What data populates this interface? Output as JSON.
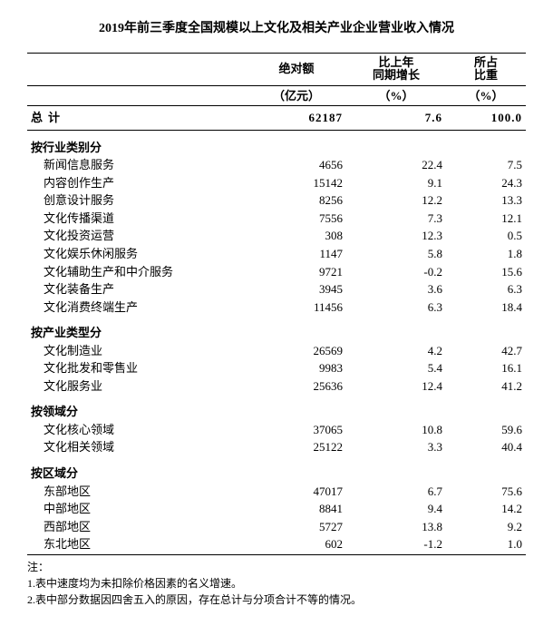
{
  "title": "2019年前三季度全国规模以上文化及相关产业企业营业收入情况",
  "header": {
    "col_label": "",
    "col_v1_line1": "绝对额",
    "col_v2_line1": "比上年",
    "col_v2_line2": "同期增长",
    "col_v3_line1": "所占",
    "col_v3_line2": "比重",
    "sub_v1": "（亿元）",
    "sub_v2": "（%）",
    "sub_v3": "（%）"
  },
  "total": {
    "label": "总计",
    "v1": "62187",
    "v2": "7.6",
    "v3": "100.0"
  },
  "sections": [
    {
      "name": "按行业类别分",
      "rows": [
        {
          "label": "新闻信息服务",
          "v1": "4656",
          "v2": "22.4",
          "v3": "7.5"
        },
        {
          "label": "内容创作生产",
          "v1": "15142",
          "v2": "9.1",
          "v3": "24.3"
        },
        {
          "label": "创意设计服务",
          "v1": "8256",
          "v2": "12.2",
          "v3": "13.3"
        },
        {
          "label": "文化传播渠道",
          "v1": "7556",
          "v2": "7.3",
          "v3": "12.1"
        },
        {
          "label": "文化投资运营",
          "v1": "308",
          "v2": "12.3",
          "v3": "0.5"
        },
        {
          "label": "文化娱乐休闲服务",
          "v1": "1147",
          "v2": "5.8",
          "v3": "1.8"
        },
        {
          "label": "文化辅助生产和中介服务",
          "v1": "9721",
          "v2": "-0.2",
          "v3": "15.6"
        },
        {
          "label": "文化装备生产",
          "v1": "3945",
          "v2": "3.6",
          "v3": "6.3"
        },
        {
          "label": "文化消费终端生产",
          "v1": "11456",
          "v2": "6.3",
          "v3": "18.4"
        }
      ]
    },
    {
      "name": "按产业类型分",
      "rows": [
        {
          "label": "文化制造业",
          "v1": "26569",
          "v2": "4.2",
          "v3": "42.7"
        },
        {
          "label": "文化批发和零售业",
          "v1": "9983",
          "v2": "5.4",
          "v3": "16.1"
        },
        {
          "label": "文化服务业",
          "v1": "25636",
          "v2": "12.4",
          "v3": "41.2"
        }
      ]
    },
    {
      "name": "按领域分",
      "rows": [
        {
          "label": "文化核心领域",
          "v1": "37065",
          "v2": "10.8",
          "v3": "59.6"
        },
        {
          "label": "文化相关领域",
          "v1": "25122",
          "v2": "3.3",
          "v3": "40.4"
        }
      ]
    },
    {
      "name": "按区域分",
      "rows": [
        {
          "label": "东部地区",
          "v1": "47017",
          "v2": "6.7",
          "v3": "75.6"
        },
        {
          "label": "中部地区",
          "v1": "8841",
          "v2": "9.4",
          "v3": "14.2"
        },
        {
          "label": "西部地区",
          "v1": "5727",
          "v2": "13.8",
          "v3": "9.2"
        },
        {
          "label": "东北地区",
          "v1": "602",
          "v2": "-1.2",
          "v3": "1.0"
        }
      ]
    }
  ],
  "notes": {
    "head": "注：",
    "n1": "1.表中速度均为未扣除价格因素的名义增速。",
    "n2": "2.表中部分数据因四舍五入的原因，存在总计与分项合计不等的情况。"
  },
  "colors": {
    "text": "#000000",
    "background": "#ffffff",
    "border": "#000000"
  }
}
